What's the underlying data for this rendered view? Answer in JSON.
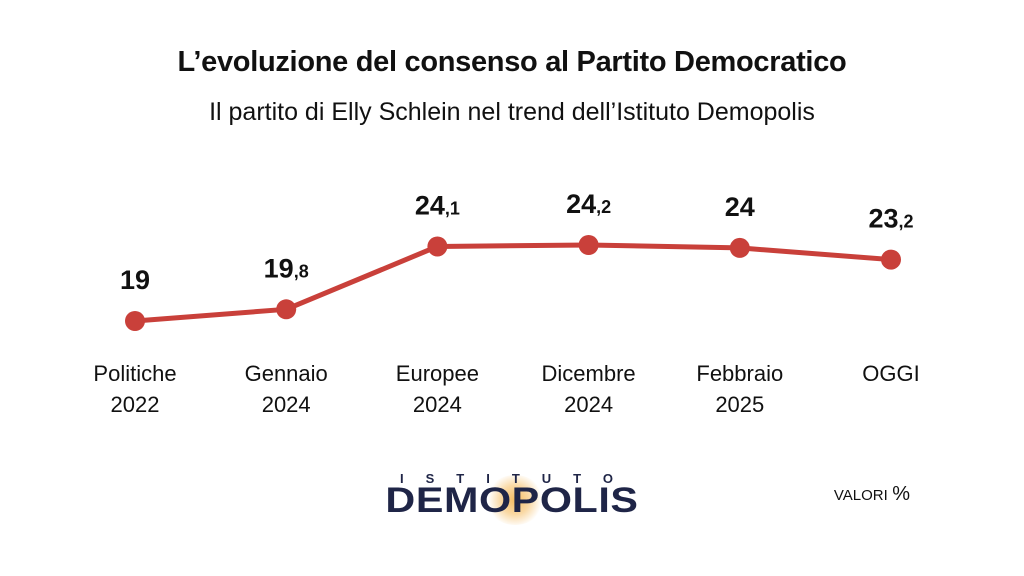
{
  "title": "L’evoluzione del consenso al Partito Democratico",
  "subtitle": "Il partito di Elly Schlein nel trend dell’Istituto Demopolis",
  "chart_data": {
    "type": "line",
    "categories": [
      [
        "Politiche",
        "2022"
      ],
      [
        "Gennaio",
        "2024"
      ],
      [
        "Europee",
        "2024"
      ],
      [
        "Dicembre",
        "2024"
      ],
      [
        "Febbraio",
        "2025"
      ],
      [
        "OGGI"
      ]
    ],
    "values": [
      19,
      19.8,
      24.1,
      24.2,
      24,
      23.2
    ],
    "data_labels": [
      {
        "int": "19",
        "dec": ""
      },
      {
        "int": "19",
        "dec": ",8"
      },
      {
        "int": "24",
        "dec": ",1"
      },
      {
        "int": "24",
        "dec": ",2"
      },
      {
        "int": "24",
        "dec": ""
      },
      {
        "int": "23",
        "dec": ",2"
      }
    ],
    "color": "#c9403a",
    "grid": false,
    "legend": false
  },
  "logo": {
    "top": "ISTITUTO",
    "main": "DEMOPOLIS"
  },
  "units": {
    "label": "VALORI",
    "symbol": "%"
  }
}
